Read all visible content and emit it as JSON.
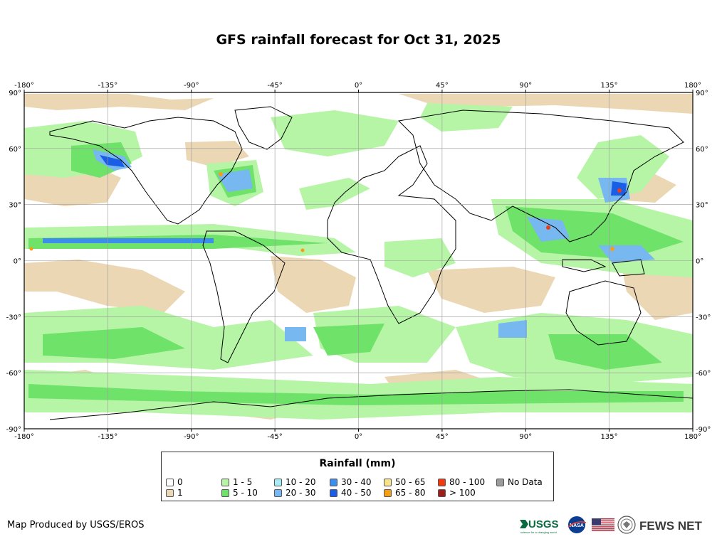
{
  "title": "GFS rainfall forecast for Oct 31, 2025",
  "map": {
    "lon_ticks": [
      "-180°",
      "-135°",
      "-90°",
      "-45°",
      "0°",
      "45°",
      "90°",
      "135°",
      "180°"
    ],
    "lat_ticks": [
      "90°",
      "60°",
      "30°",
      "0°",
      "-30°",
      "-60°",
      "-90°"
    ],
    "projection": "equirectangular",
    "extent": {
      "lon": [
        -180,
        180
      ],
      "lat": [
        -90,
        90
      ]
    },
    "grid": true
  },
  "legend": {
    "title": "Rainfall (mm)",
    "classes": [
      {
        "label": "0",
        "color": "#ffffff"
      },
      {
        "label": "1",
        "color": "#ecd7b4"
      },
      {
        "label": "1 - 5",
        "color": "#b6f5a6"
      },
      {
        "label": "5 - 10",
        "color": "#6fe26a"
      },
      {
        "label": "10 - 20",
        "color": "#a5ecf5"
      },
      {
        "label": "20 - 30",
        "color": "#78b8f0"
      },
      {
        "label": "30 - 40",
        "color": "#3c8ded"
      },
      {
        "label": "40 - 50",
        "color": "#1a5ee6"
      },
      {
        "label": "50 - 65",
        "color": "#f9e38a"
      },
      {
        "label": "65 - 80",
        "color": "#f69d16"
      },
      {
        "label": "80 - 100",
        "color": "#f23a10"
      },
      {
        "label": "> 100",
        "color": "#9c1f1c"
      },
      {
        "label": "No Data",
        "color": "#9b9b9b"
      }
    ]
  },
  "credit": "Map Produced by USGS/EROS",
  "logos": {
    "usgs": "USGS",
    "usgs_tagline": "science for a changing world",
    "nasa": "NASA",
    "fews": "FEWS NET"
  }
}
